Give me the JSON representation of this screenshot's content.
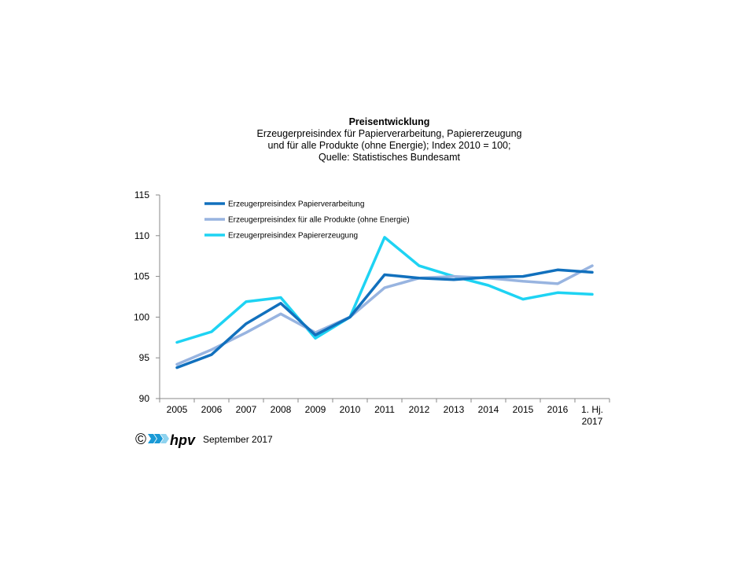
{
  "title": "Preisentwicklung",
  "subtitle_lines": [
    "Erzeugerpreisindex für Papierverarbeitung, Papiererzeugung",
    "und für alle Produkte (ohne Energie); Index 2010 = 100;",
    "Quelle: Statistisches Bundesamt"
  ],
  "footer": {
    "copyright": "©",
    "logo_text": "hpv",
    "date": "September 2017"
  },
  "colors": {
    "papierverarbeitung": "#1170bd",
    "alle_produkte": "#98b4e0",
    "papiererzeugung": "#1ed3f3",
    "logo_blue": "#1a9ad6",
    "logo_light": "#8fd3ef"
  },
  "chart_data": {
    "type": "line",
    "categories": [
      "2005",
      "2006",
      "2007",
      "2008",
      "2009",
      "2010",
      "2011",
      "2012",
      "2013",
      "2014",
      "2015",
      "2016",
      "1. Hj.\n2017"
    ],
    "ylim": [
      90,
      115
    ],
    "yticks": [
      90,
      95,
      100,
      105,
      110,
      115
    ],
    "grid": false,
    "legend_position": "top-left",
    "series": [
      {
        "name": "Erzeugerpreisindex Papierverarbeitung",
        "color": "#1170bd",
        "values": [
          93.8,
          95.4,
          99.2,
          101.7,
          97.8,
          100.0,
          105.2,
          104.8,
          104.6,
          104.9,
          105.0,
          105.8,
          105.5
        ]
      },
      {
        "name": "Erzeugerpreisindex für alle Produkte (ohne Energie)",
        "color": "#98b4e0",
        "values": [
          94.2,
          96.0,
          98.1,
          100.4,
          98.1,
          100.0,
          103.6,
          104.8,
          105.0,
          104.8,
          104.4,
          104.1,
          106.3
        ]
      },
      {
        "name": "Erzeugerpreisindex Papiererzeugung",
        "color": "#1ed3f3",
        "values": [
          96.9,
          98.2,
          101.9,
          102.4,
          97.4,
          100.0,
          109.8,
          106.3,
          105.0,
          103.9,
          102.2,
          103.0,
          102.8
        ]
      }
    ]
  }
}
